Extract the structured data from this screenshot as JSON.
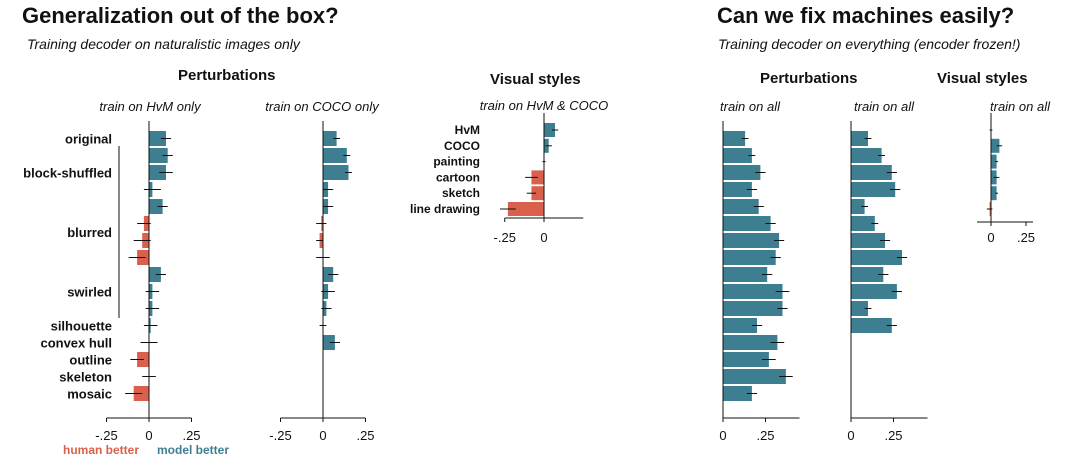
{
  "left_section": {
    "title": "Generalization out of the box?",
    "subtitle": "Training decoder on naturalistic images only",
    "perturbations_title": "Perturbations",
    "visual_styles_title": "Visual styles",
    "human_better": "human better",
    "model_better": "model better"
  },
  "right_section": {
    "title": "Can we fix machines easily?",
    "subtitle": "Training decoder on everything (encoder frozen!)",
    "perturbations_title": "Perturbations",
    "visual_styles_title": "Visual styles"
  },
  "colors": {
    "model_better": "#3d7f91",
    "human_better": "#d9604c"
  },
  "chart_data": [
    {
      "type": "bar",
      "orientation": "horizontal",
      "title": "train on HvM only",
      "group_labels": [
        "original",
        "block-shuffled",
        "blurred",
        "swirled",
        "silhouette",
        "convex hull",
        "outline",
        "skeleton",
        "mosaic"
      ],
      "xlim": [
        -0.25,
        0.25
      ],
      "xticks": [
        "-.25",
        "0",
        ".25"
      ],
      "values": [
        0.1,
        0.11,
        0.1,
        0.02,
        0.08,
        -0.03,
        -0.04,
        -0.07,
        0.07,
        0.02,
        0.02,
        0.01,
        0.0,
        -0.07,
        0.0,
        -0.09
      ],
      "errors": [
        0.03,
        0.03,
        0.04,
        0.05,
        0.03,
        0.04,
        0.05,
        0.05,
        0.03,
        0.04,
        0.04,
        0.04,
        0.05,
        0.04,
        0.04,
        0.05
      ]
    },
    {
      "type": "bar",
      "orientation": "horizontal",
      "title": "train on COCO only",
      "xlim": [
        -0.25,
        0.25
      ],
      "xticks": [
        "-.25",
        "0",
        ".25"
      ],
      "values": [
        0.08,
        0.14,
        0.15,
        0.03,
        0.03,
        -0.01,
        -0.02,
        0.0,
        0.06,
        0.03,
        0.02,
        0.0,
        0.07
      ],
      "errors": [
        0.02,
        0.02,
        0.02,
        0.03,
        0.03,
        0.03,
        0.02,
        0.04,
        0.03,
        0.04,
        0.03,
        0.02,
        0.03
      ]
    },
    {
      "type": "bar",
      "orientation": "horizontal",
      "title": "train on HvM & COCO",
      "categories": [
        "HvM",
        "COCO",
        "painting",
        "cartoon",
        "sketch",
        "line drawing"
      ],
      "xlim": [
        -0.25,
        0.25
      ],
      "xticks": [
        "-.25",
        "0"
      ],
      "values": [
        0.07,
        0.03,
        0.0,
        -0.08,
        -0.08,
        -0.23
      ],
      "errors": [
        0.02,
        0.02,
        0.01,
        0.04,
        0.03,
        0.05
      ]
    },
    {
      "type": "bar",
      "orientation": "horizontal",
      "title": "train on all",
      "xlim": [
        0,
        0.45
      ],
      "xticks": [
        "0",
        ".25"
      ],
      "values": [
        0.13,
        0.17,
        0.22,
        0.17,
        0.21,
        0.28,
        0.33,
        0.31,
        0.26,
        0.35,
        0.35,
        0.2,
        0.32,
        0.27,
        0.37,
        0.17
      ],
      "errors": [
        0.02,
        0.02,
        0.03,
        0.03,
        0.03,
        0.03,
        0.03,
        0.03,
        0.03,
        0.04,
        0.03,
        0.03,
        0.04,
        0.04,
        0.04,
        0.03
      ]
    },
    {
      "type": "bar",
      "orientation": "horizontal",
      "title": "train on all",
      "xlim": [
        0,
        0.45
      ],
      "xticks": [
        "0",
        ".25"
      ],
      "values": [
        0.1,
        0.18,
        0.24,
        0.26,
        0.08,
        0.14,
        0.2,
        0.3,
        0.19,
        0.27,
        0.1,
        0.24
      ],
      "errors": [
        0.02,
        0.02,
        0.03,
        0.03,
        0.02,
        0.02,
        0.03,
        0.03,
        0.03,
        0.03,
        0.02,
        0.03
      ]
    },
    {
      "type": "bar",
      "orientation": "horizontal",
      "title": "train on all",
      "xlim": [
        -0.1,
        0.3
      ],
      "xticks": [
        "0",
        ".25"
      ],
      "values": [
        0.0,
        0.06,
        0.04,
        0.04,
        0.04,
        -0.01
      ],
      "errors": [
        0.01,
        0.02,
        0.01,
        0.02,
        0.01,
        0.02
      ]
    }
  ]
}
